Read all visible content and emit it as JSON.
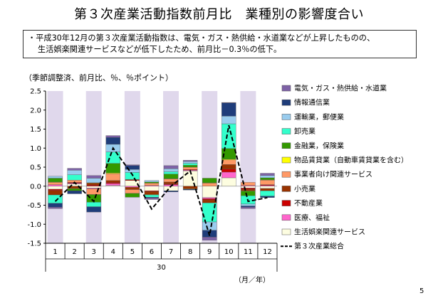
{
  "title": "第３次産業活動指数前月比　業種別の影響度合い",
  "note": {
    "line1": "・平成30年12月の第３次産業活動指数は、電気・ガス・熱供給・水道業などが上昇したものの、",
    "line2": "生活娯楽関連サービスなどが低下したため、前月比－0.3％の低下。"
  },
  "unit_label": "（季節調整済、前月比、％、％ポイント）",
  "page_number": "5",
  "chart_data": {
    "type": "bar",
    "stacked": true,
    "categories": [
      "1",
      "2",
      "3",
      "4",
      "5",
      "6",
      "7",
      "8",
      "9",
      "10",
      "11",
      "12"
    ],
    "x_group_label": "30",
    "xlabel": "（月／年）",
    "ylim": [
      -1.5,
      2.5
    ],
    "yticks": [
      "2.5",
      "2.0",
      "1.5",
      "1.0",
      "0.5",
      "0.0",
      "-0.5",
      "-1.0",
      "-1.5"
    ],
    "shaded_categories": [
      1,
      3,
      5,
      7,
      9,
      11
    ],
    "shade_color": "#e0d8ec",
    "series": [
      {
        "name": "生活娯楽関連サービス",
        "color": "#fdfde0",
        "values": [
          -0.08,
          0.06,
          -0.05,
          0.02,
          0.15,
          -0.12,
          -0.12,
          0.4,
          -0.3,
          0.22,
          -0.05,
          -0.06
        ]
      },
      {
        "name": "医療、福祉",
        "color": "#ff66cc",
        "values": [
          0.04,
          0.02,
          -0.02,
          0.05,
          -0.03,
          0.02,
          0.04,
          0.02,
          -0.03,
          0.15,
          0.02,
          0.02
        ]
      },
      {
        "name": "不動産業",
        "color": "#cc0000",
        "values": [
          -0.03,
          0.02,
          0.03,
          0.03,
          0.02,
          -0.02,
          0.02,
          0.02,
          -0.03,
          0.08,
          -0.03,
          0.02
        ]
      },
      {
        "name": "小売業",
        "color": "#993300",
        "values": [
          -0.12,
          -0.06,
          0.05,
          0.05,
          -0.06,
          -0.08,
          0.05,
          -0.07,
          -0.08,
          0.12,
          -0.04,
          -0.06
        ]
      },
      {
        "name": "事業者向け関連サービス",
        "color": "#ff9966",
        "values": [
          0.06,
          0.06,
          -0.15,
          0.18,
          -0.1,
          0.06,
          0.08,
          0.06,
          0.08,
          0.12,
          0.08,
          0.12
        ]
      },
      {
        "name": "物品賃貸業（自動車賃貸業を含む）",
        "color": "#ffff00",
        "values": [
          0.01,
          -0.01,
          0.01,
          0.02,
          0.01,
          -0.01,
          0.01,
          -0.01,
          0.01,
          0.02,
          -0.01,
          0.01
        ]
      },
      {
        "name": "金融業，保険業",
        "color": "#339900",
        "values": [
          0.1,
          -0.05,
          -0.2,
          0.25,
          -0.1,
          0.03,
          0.12,
          0.05,
          0.12,
          0.28,
          -0.12,
          0.05
        ]
      },
      {
        "name": "卸売業",
        "color": "#33ffcc",
        "values": [
          -0.22,
          0.14,
          -0.12,
          0.3,
          0.18,
          -0.06,
          0.06,
          0.05,
          -0.5,
          0.65,
          -0.22,
          -0.14
        ]
      },
      {
        "name": "運輸業，郵便業",
        "color": "#99ccee",
        "values": [
          0.05,
          0.12,
          0.12,
          0.2,
          0.08,
          0.04,
          0.08,
          0.05,
          -0.22,
          0.2,
          -0.05,
          0.06
        ]
      },
      {
        "name": "情報通信業",
        "color": "#1f3d7a",
        "values": [
          -0.1,
          -0.08,
          -0.14,
          0.18,
          0.1,
          -0.02,
          -0.03,
          -0.02,
          -0.18,
          0.35,
          -0.03,
          -0.04
        ]
      },
      {
        "name": "電気・ガス・熱供給・水道業",
        "color": "#7e62a6",
        "values": [
          -0.04,
          0.05,
          0.07,
          0.05,
          0.02,
          -0.04,
          0.08,
          0.03,
          -0.08,
          0.01,
          -0.04,
          0.06
        ]
      }
    ],
    "line": {
      "name": "第３次産業総合",
      "color": "#000000",
      "dash": true,
      "values": [
        -0.4,
        0.1,
        -0.4,
        1.0,
        0.3,
        -0.6,
        0.0,
        0.4,
        -1.3,
        1.6,
        -0.4,
        -0.3
      ]
    }
  }
}
